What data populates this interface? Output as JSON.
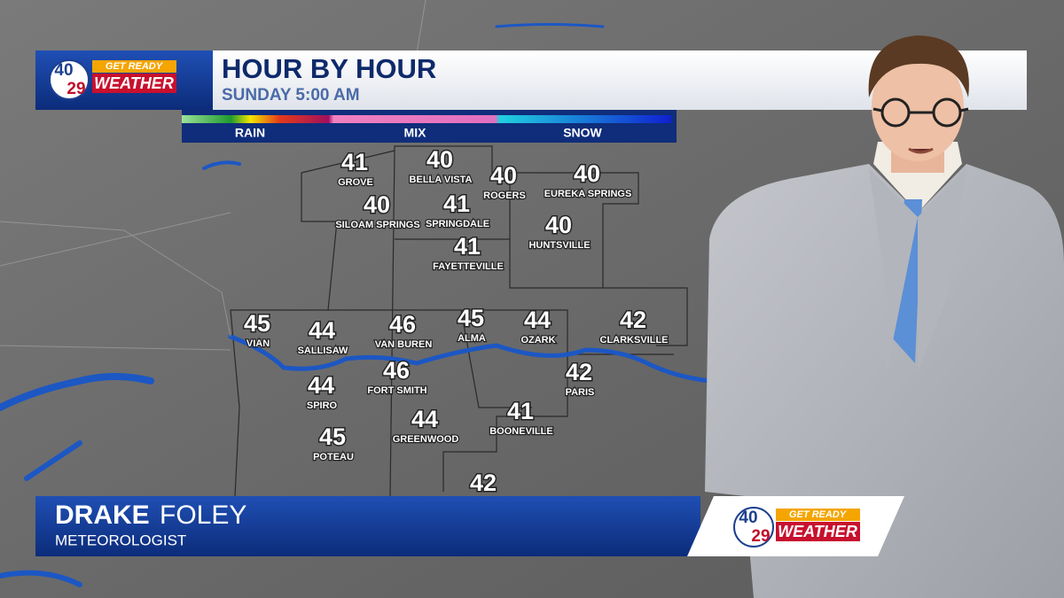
{
  "header": {
    "logo": {
      "number_top": "40",
      "number_bottom": "29",
      "tagline": "GET READY",
      "brand": "WEATHER"
    },
    "title": "HOUR BY HOUR",
    "subtitle": "SUNDAY 5:00 AM",
    "legend": [
      "RAIN",
      "MIX",
      "SNOW"
    ]
  },
  "map": {
    "cities": [
      {
        "temp": 41,
        "name": "GROVE"
      },
      {
        "temp": 40,
        "name": "BELLA VISTA"
      },
      {
        "temp": 40,
        "name": "ROGERS"
      },
      {
        "temp": 40,
        "name": "EUREKA SPRINGS"
      },
      {
        "temp": 40,
        "name": "SILOAM SPRINGS"
      },
      {
        "temp": 41,
        "name": "SPRINGDALE"
      },
      {
        "temp": 41,
        "name": "FAYETTEVILLE"
      },
      {
        "temp": 40,
        "name": "HUNTSVILLE"
      },
      {
        "temp": 45,
        "name": "VIAN"
      },
      {
        "temp": 44,
        "name": "SALLISAW"
      },
      {
        "temp": 46,
        "name": "VAN BUREN"
      },
      {
        "temp": 45,
        "name": "ALMA"
      },
      {
        "temp": 44,
        "name": "OZARK"
      },
      {
        "temp": 42,
        "name": "CLARKSVILLE"
      },
      {
        "temp": 46,
        "name": "FORT SMITH"
      },
      {
        "temp": 42,
        "name": "PARIS"
      },
      {
        "temp": 44,
        "name": "SPIRO"
      },
      {
        "temp": 44,
        "name": "GREENWOOD"
      },
      {
        "temp": 41,
        "name": "BOONEVILLE"
      },
      {
        "temp": 45,
        "name": "POTEAU"
      },
      {
        "temp": 42
      }
    ]
  },
  "lower_third": {
    "first_name": "DRAKE",
    "last_name": "FOLEY",
    "role": "METEOROLOGIST",
    "logo": {
      "number_top": "40",
      "number_bottom": "29",
      "tagline": "GET READY",
      "brand": "WEATHER"
    }
  }
}
